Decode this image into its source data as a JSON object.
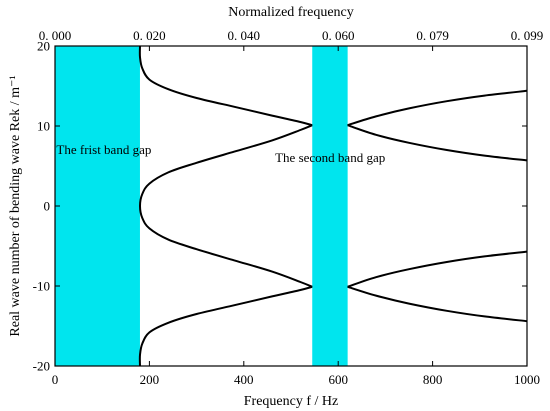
{
  "chart_data": {
    "type": "line",
    "xlabel": "Frequency f / Hz",
    "x2label": "Normalized frequency",
    "ylabel": "Real wave number of bending wave Rek / m⁻¹",
    "xlim": [
      0,
      1000
    ],
    "ylim": [
      -20,
      20
    ],
    "x_ticks": [
      0,
      200,
      400,
      600,
      800,
      1000
    ],
    "x_tick_labels": [
      "0",
      "200",
      "400",
      "600",
      "800",
      "1000"
    ],
    "y_ticks": [
      -20,
      -10,
      0,
      10,
      20
    ],
    "y_tick_labels": [
      "-20",
      "-10",
      "0",
      "10",
      "20"
    ],
    "x2_ticks": [
      0,
      200,
      400,
      600,
      800,
      1000
    ],
    "x2_tick_labels": [
      "0. 000",
      "0. 020",
      "0. 040",
      "0. 060",
      "0. 079",
      "0. 099"
    ],
    "band_gap_color": "#00e5ee",
    "line_color": "#000000",
    "band_gaps": [
      {
        "from": 0,
        "to": 180,
        "label": "The frist band gap"
      },
      {
        "from": 545,
        "to": 620,
        "label": "The second band gap"
      }
    ],
    "series": [
      {
        "values": [
          [
            180,
            20
          ],
          [
            180,
            18.6
          ],
          [
            185,
            17.2
          ],
          [
            200,
            15.8
          ],
          [
            240,
            14.6
          ],
          [
            300,
            13.5
          ],
          [
            380,
            12.4
          ],
          [
            460,
            11.3
          ],
          [
            520,
            10.5
          ],
          [
            545,
            10.1
          ]
        ]
      },
      {
        "values": [
          [
            545,
            10.1
          ],
          [
            520,
            9.5
          ],
          [
            460,
            8.2
          ],
          [
            380,
            6.8
          ],
          [
            300,
            5.4
          ],
          [
            240,
            4.2
          ],
          [
            200,
            2.8
          ],
          [
            185,
            1.5
          ],
          [
            180,
            0
          ],
          [
            185,
            -1.5
          ],
          [
            200,
            -2.8
          ],
          [
            240,
            -4.2
          ],
          [
            300,
            -5.4
          ],
          [
            380,
            -6.8
          ],
          [
            460,
            -8.2
          ],
          [
            520,
            -9.5
          ],
          [
            545,
            -10.1
          ]
        ]
      },
      {
        "values": [
          [
            545,
            -10.1
          ],
          [
            520,
            -10.5
          ],
          [
            460,
            -11.3
          ],
          [
            380,
            -12.4
          ],
          [
            300,
            -13.5
          ],
          [
            240,
            -14.6
          ],
          [
            200,
            -15.8
          ],
          [
            185,
            -17.2
          ],
          [
            180,
            -18.6
          ],
          [
            180,
            -20
          ]
        ]
      },
      {
        "values": [
          [
            620,
            10.1
          ],
          [
            680,
            11.2
          ],
          [
            750,
            12.2
          ],
          [
            830,
            13.1
          ],
          [
            910,
            13.8
          ],
          [
            1000,
            14.4
          ]
        ]
      },
      {
        "values": [
          [
            620,
            10.1
          ],
          [
            680,
            8.9
          ],
          [
            750,
            7.9
          ],
          [
            830,
            7.0
          ],
          [
            910,
            6.3
          ],
          [
            1000,
            5.7
          ]
        ]
      },
      {
        "values": [
          [
            620,
            -10.1
          ],
          [
            680,
            -8.9
          ],
          [
            750,
            -7.9
          ],
          [
            830,
            -7.0
          ],
          [
            910,
            -6.3
          ],
          [
            1000,
            -5.7
          ]
        ]
      },
      {
        "values": [
          [
            620,
            -10.1
          ],
          [
            680,
            -11.2
          ],
          [
            750,
            -12.2
          ],
          [
            830,
            -13.1
          ],
          [
            910,
            -13.8
          ],
          [
            1000,
            -14.4
          ]
        ]
      }
    ]
  }
}
